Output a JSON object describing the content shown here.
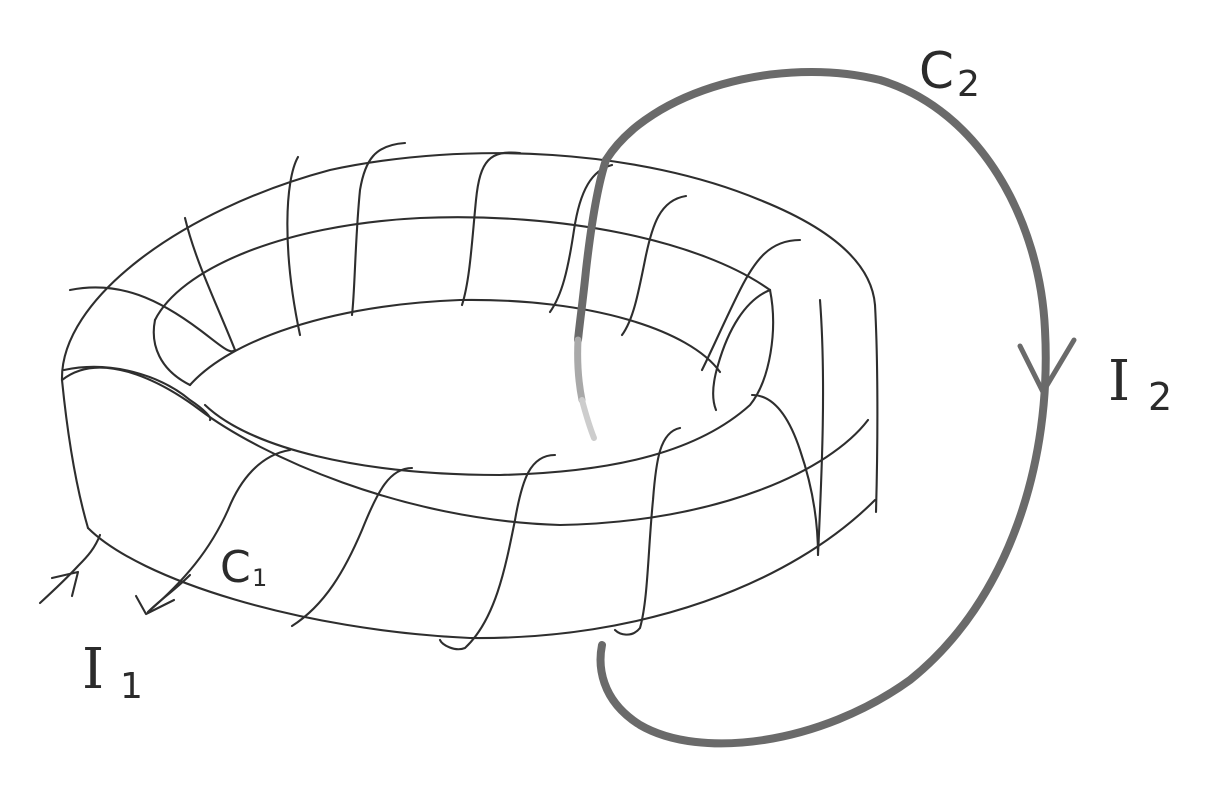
{
  "diagram": {
    "labels": {
      "loop_c1": "C",
      "loop_c1_sub": "1",
      "loop_c2": "C",
      "loop_c2_sub": "2",
      "current_i1": "I",
      "current_i1_sub": "1",
      "current_i2": "I",
      "current_i2_sub": "2"
    },
    "colors": {
      "ink": "#2e2e2e",
      "loop_c2": "#6a6a6a",
      "background": "#ffffff"
    }
  }
}
